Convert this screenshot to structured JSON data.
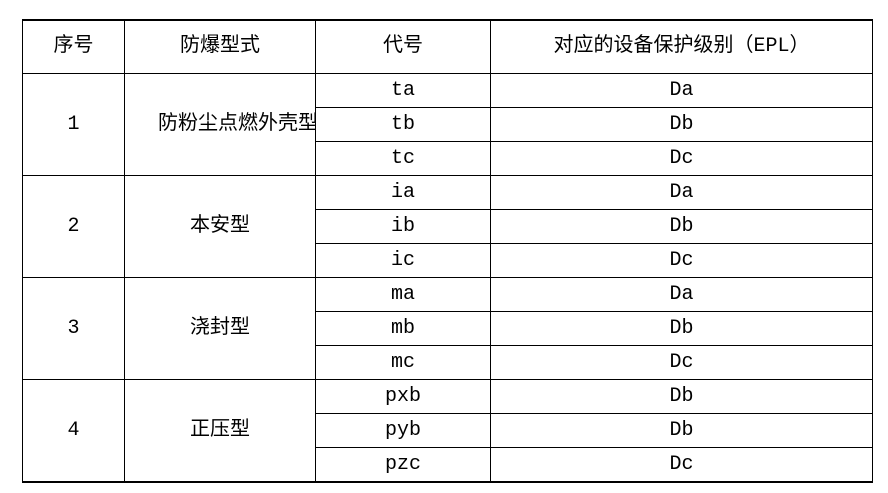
{
  "table": {
    "headers": {
      "no": "序号",
      "type": "防爆型式",
      "code": "代号",
      "epl": "对应的设备保护级别（EPL）"
    },
    "groups": [
      {
        "no": "1",
        "type": "防粉尘点燃外壳型",
        "rows": [
          {
            "code": "ta",
            "epl": "Da"
          },
          {
            "code": "tb",
            "epl": "Db"
          },
          {
            "code": "tc",
            "epl": "Dc"
          }
        ]
      },
      {
        "no": "2",
        "type": "本安型",
        "rows": [
          {
            "code": "ia",
            "epl": "Da"
          },
          {
            "code": "ib",
            "epl": "Db"
          },
          {
            "code": "ic",
            "epl": "Dc"
          }
        ]
      },
      {
        "no": "3",
        "type": "浇封型",
        "rows": [
          {
            "code": "ma",
            "epl": "Da"
          },
          {
            "code": "mb",
            "epl": "Db"
          },
          {
            "code": "mc",
            "epl": "Dc"
          }
        ]
      },
      {
        "no": "4",
        "type": "正压型",
        "rows": [
          {
            "code": "pxb",
            "epl": "Db"
          },
          {
            "code": "pyb",
            "epl": "Db"
          },
          {
            "code": "pzc",
            "epl": "Dc"
          }
        ]
      }
    ],
    "colors": {
      "border": "#000000",
      "text": "#000000",
      "background": "#ffffff"
    }
  }
}
